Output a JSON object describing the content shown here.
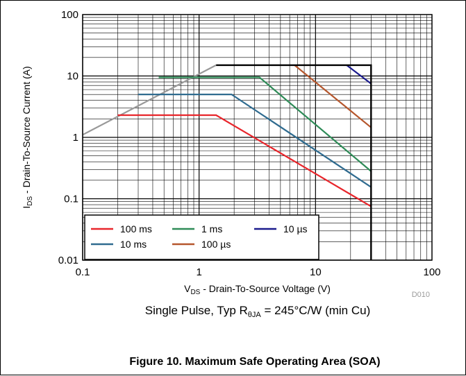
{
  "chart_data": {
    "type": "line",
    "x_scale": "log",
    "y_scale": "log",
    "xlim": [
      0.1,
      100
    ],
    "ylim": [
      0.01,
      100
    ],
    "grid": true,
    "x_tick_labels": [
      "0.1",
      "1",
      "10",
      "100"
    ],
    "y_tick_labels": [
      "0.01",
      "0.1",
      "1",
      "10",
      "100"
    ],
    "xlabel_main": "V",
    "xlabel_sub": "DS",
    "xlabel_rest": " - Drain-To-Source Voltage (V)",
    "ylabel_main": "I",
    "ylabel_sub": "DS",
    "ylabel_rest": " - Drain-To-Source Current (A)",
    "figure_code": "D010",
    "legend_position": "bottom-left",
    "series": [
      {
        "name": "100 ms",
        "color": "#e8252b",
        "x": [
          0.2,
          1.4,
          30
        ],
        "y": [
          2.3,
          2.3,
          0.075
        ]
      },
      {
        "name": "1 ms",
        "color": "#2e8b57",
        "x": [
          0.45,
          3.3,
          30
        ],
        "y": [
          9.5,
          9.5,
          0.28
        ]
      },
      {
        "name": "10 µs",
        "color": "#1a1a8c",
        "x": [
          18.5,
          30
        ],
        "y": [
          15,
          7.5
        ]
      },
      {
        "name": "10 ms",
        "color": "#2f6b8f",
        "x": [
          0.3,
          1.9,
          30
        ],
        "y": [
          5,
          5,
          0.155
        ]
      },
      {
        "name": "100 µs",
        "color": "#b5562c",
        "x": [
          6.6,
          30
        ],
        "y": [
          15,
          1.45
        ]
      }
    ],
    "boundary": {
      "rdson_limit": {
        "color": "#999999",
        "x": [
          0.1,
          1.4
        ],
        "y": [
          1.1,
          15
        ]
      },
      "envelope": {
        "color": "#000000",
        "x": [
          1.4,
          30,
          30
        ],
        "y": [
          15,
          15,
          0.01
        ]
      }
    }
  },
  "caption": {
    "prefix": "Single Pulse, Typ R",
    "sub": "θJA",
    "suffix": " = 245°C/W (min Cu)"
  },
  "figure_title": "Figure 10. Maximum Safe Operating Area (SOA)"
}
